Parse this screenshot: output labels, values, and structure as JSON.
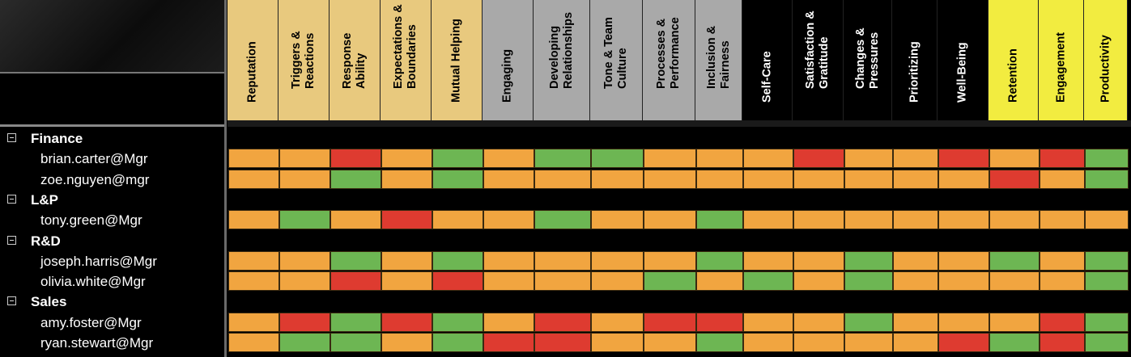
{
  "colors": {
    "orange": "#F1A540",
    "red": "#DE3B30",
    "green": "#6DB653",
    "header_tan": "#E8C97E",
    "header_gray": "#A9A9A9",
    "header_black": "#000000",
    "header_yellow": "#F2EC40"
  },
  "columns": [
    {
      "label": "Reputation",
      "group": "tan"
    },
    {
      "label": "Triggers &\nReactions",
      "group": "tan"
    },
    {
      "label": "Response\nAbility",
      "group": "tan"
    },
    {
      "label": "Expectations &\nBoundaries",
      "group": "tan"
    },
    {
      "label": "Mutual Helping",
      "group": "tan"
    },
    {
      "label": "Engaging",
      "group": "gray"
    },
    {
      "label": "Developing\nRelationships",
      "group": "gray"
    },
    {
      "label": "Tone & Team\nCulture",
      "group": "gray"
    },
    {
      "label": "Processes &\nPerformance",
      "group": "gray"
    },
    {
      "label": "Inclusion &\nFairness",
      "group": "gray"
    },
    {
      "label": "Self-Care",
      "group": "black"
    },
    {
      "label": "Satisfaction &\nGratitude",
      "group": "black"
    },
    {
      "label": "Changes &\nPressures",
      "group": "black"
    },
    {
      "label": "Prioritizing",
      "group": "black"
    },
    {
      "label": "Well-Being",
      "group": "black"
    },
    {
      "label": "Retention",
      "group": "yellow"
    },
    {
      "label": "Engagement",
      "group": "yellow"
    },
    {
      "label": "Productivity",
      "group": "yellow"
    }
  ],
  "rows": [
    {
      "type": "group",
      "label": "Finance"
    },
    {
      "type": "manager",
      "label": "brian.carter@Mgr",
      "cells": [
        "O",
        "O",
        "R",
        "O",
        "G",
        "O",
        "G",
        "G",
        "O",
        "O",
        "O",
        "R",
        "O",
        "O",
        "R",
        "O",
        "R",
        "G"
      ]
    },
    {
      "type": "manager",
      "label": "zoe.nguyen@mgr",
      "cells": [
        "O",
        "O",
        "G",
        "O",
        "G",
        "O",
        "O",
        "O",
        "O",
        "O",
        "O",
        "O",
        "O",
        "O",
        "O",
        "R",
        "O",
        "G"
      ]
    },
    {
      "type": "group",
      "label": "L&P"
    },
    {
      "type": "manager",
      "label": "tony.green@Mgr",
      "cells": [
        "O",
        "G",
        "O",
        "R",
        "O",
        "O",
        "G",
        "O",
        "O",
        "G",
        "O",
        "O",
        "O",
        "O",
        "O",
        "O",
        "O",
        "O"
      ]
    },
    {
      "type": "group",
      "label": "R&D"
    },
    {
      "type": "manager",
      "label": "joseph.harris@Mgr",
      "cells": [
        "O",
        "O",
        "G",
        "O",
        "G",
        "O",
        "O",
        "O",
        "O",
        "G",
        "O",
        "O",
        "G",
        "O",
        "O",
        "G",
        "O",
        "G"
      ]
    },
    {
      "type": "manager",
      "label": "olivia.white@Mgr",
      "cells": [
        "O",
        "O",
        "R",
        "O",
        "R",
        "O",
        "O",
        "O",
        "G",
        "O",
        "G",
        "O",
        "G",
        "O",
        "O",
        "O",
        "O",
        "G"
      ]
    },
    {
      "type": "group",
      "label": "Sales"
    },
    {
      "type": "manager",
      "label": "amy.foster@Mgr",
      "cells": [
        "O",
        "R",
        "G",
        "R",
        "G",
        "O",
        "R",
        "O",
        "R",
        "R",
        "O",
        "O",
        "G",
        "O",
        "O",
        "O",
        "R",
        "G"
      ]
    },
    {
      "type": "manager",
      "label": "ryan.stewart@Mgr",
      "cells": [
        "O",
        "G",
        "G",
        "O",
        "G",
        "R",
        "R",
        "O",
        "O",
        "G",
        "O",
        "O",
        "O",
        "O",
        "R",
        "G",
        "R",
        "G"
      ]
    }
  ]
}
